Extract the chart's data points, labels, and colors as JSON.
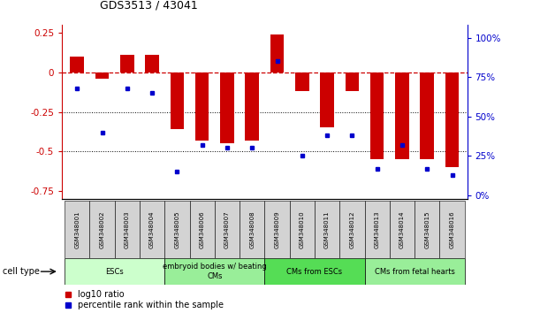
{
  "title": "GDS3513 / 43041",
  "samples": [
    "GSM348001",
    "GSM348002",
    "GSM348003",
    "GSM348004",
    "GSM348005",
    "GSM348006",
    "GSM348007",
    "GSM348008",
    "GSM348009",
    "GSM348010",
    "GSM348011",
    "GSM348012",
    "GSM348013",
    "GSM348014",
    "GSM348015",
    "GSM348016"
  ],
  "log10_ratio": [
    0.1,
    -0.04,
    0.11,
    0.11,
    -0.36,
    -0.43,
    -0.45,
    -0.43,
    0.24,
    -0.12,
    -0.35,
    -0.12,
    -0.55,
    -0.55,
    -0.55,
    -0.6
  ],
  "percentile_rank": [
    68,
    40,
    68,
    65,
    15,
    32,
    30,
    30,
    85,
    25,
    38,
    38,
    17,
    32,
    17,
    13
  ],
  "ylim_left": [
    -0.8,
    0.3
  ],
  "ylim_right": [
    -2.18,
    108
  ],
  "bar_color": "#cc0000",
  "dot_color": "#0000cc",
  "dashed_line_color": "#cc0000",
  "cell_types": [
    {
      "label": "ESCs",
      "start": 0,
      "end": 4,
      "color": "#ccffcc"
    },
    {
      "label": "embryoid bodies w/ beating\nCMs",
      "start": 4,
      "end": 8,
      "color": "#99ee99"
    },
    {
      "label": "CMs from ESCs",
      "start": 8,
      "end": 12,
      "color": "#55dd55"
    },
    {
      "label": "CMs from fetal hearts",
      "start": 12,
      "end": 16,
      "color": "#99ee99"
    }
  ],
  "left_yticks": [
    0.25,
    0,
    -0.25,
    -0.5,
    -0.75
  ],
  "right_yticks": [
    0,
    25,
    50,
    75,
    100
  ],
  "right_yticklabels": [
    "0%",
    "25%",
    "50%",
    "75%",
    "100%"
  ],
  "legend_red_label": "log10 ratio",
  "legend_blue_label": "percentile rank within the sample",
  "cell_type_label": "cell type"
}
